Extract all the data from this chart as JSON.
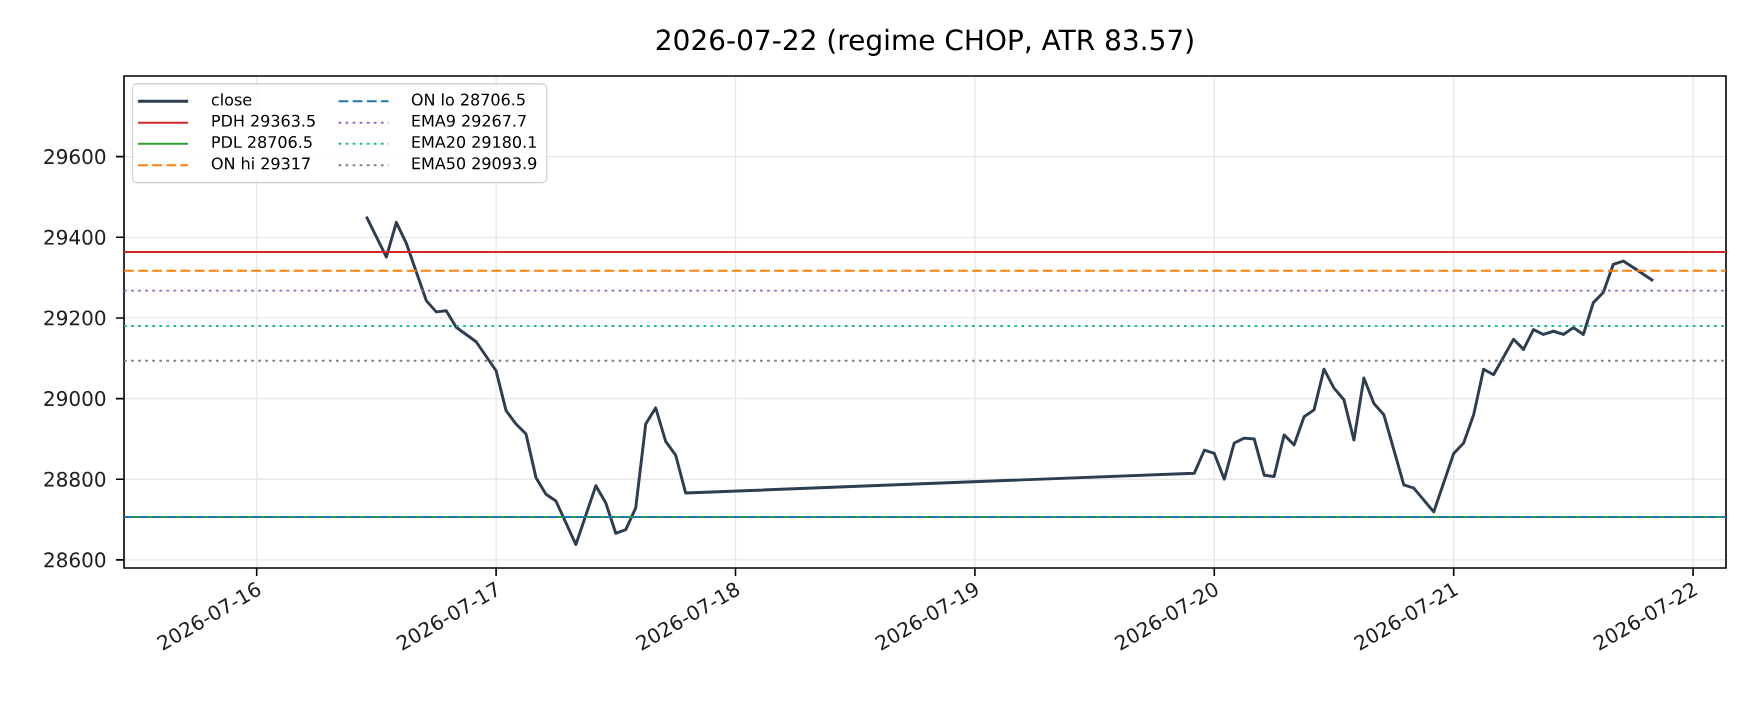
{
  "chart_data": {
    "type": "line",
    "title": "2026-07-22  (regime CHOP, ATR 83.57)",
    "series": [
      {
        "name": "close",
        "color": "#2c3e50",
        "x": [
          "2026-07-16T11:00",
          "2026-07-16T12:00",
          "2026-07-16T13:00",
          "2026-07-16T14:00",
          "2026-07-16T15:00",
          "2026-07-16T17:00",
          "2026-07-16T18:00",
          "2026-07-16T19:00",
          "2026-07-16T20:00",
          "2026-07-16T22:00",
          "2026-07-17T00:00",
          "2026-07-17T01:00",
          "2026-07-17T02:00",
          "2026-07-17T03:00",
          "2026-07-17T04:00",
          "2026-07-17T05:00",
          "2026-07-17T06:00",
          "2026-07-17T08:00",
          "2026-07-17T10:00",
          "2026-07-17T11:00",
          "2026-07-17T12:00",
          "2026-07-17T13:00",
          "2026-07-17T14:00",
          "2026-07-17T15:00",
          "2026-07-17T16:00",
          "2026-07-17T17:00",
          "2026-07-17T18:00",
          "2026-07-17T19:00",
          "2026-07-19T22:00",
          "2026-07-19T23:00",
          "2026-07-20T00:00",
          "2026-07-20T01:00",
          "2026-07-20T02:00",
          "2026-07-20T03:00",
          "2026-07-20T04:00",
          "2026-07-20T05:00",
          "2026-07-20T06:00",
          "2026-07-20T07:00",
          "2026-07-20T08:00",
          "2026-07-20T09:00",
          "2026-07-20T10:00",
          "2026-07-20T11:00",
          "2026-07-20T12:00",
          "2026-07-20T13:00",
          "2026-07-20T14:00",
          "2026-07-20T15:00",
          "2026-07-20T16:00",
          "2026-07-20T17:00",
          "2026-07-20T19:00",
          "2026-07-20T20:00",
          "2026-07-20T22:00",
          "2026-07-21T00:00",
          "2026-07-21T01:00",
          "2026-07-21T02:00",
          "2026-07-21T03:00",
          "2026-07-21T04:00",
          "2026-07-21T06:00",
          "2026-07-21T07:00",
          "2026-07-21T08:00",
          "2026-07-21T09:00",
          "2026-07-21T10:00",
          "2026-07-21T11:00",
          "2026-07-21T12:00",
          "2026-07-21T13:00",
          "2026-07-21T14:00",
          "2026-07-21T15:00",
          "2026-07-21T16:00",
          "2026-07-21T17:00",
          "2026-07-21T18:00",
          "2026-07-21T20:00"
        ],
        "values": [
          29451,
          29401,
          29351,
          29437,
          29385,
          29243,
          29215,
          29218,
          29177,
          29141,
          29069,
          28970,
          28937,
          28912,
          28804,
          28763,
          28746,
          28638,
          28784,
          28741,
          28666,
          28675,
          28729,
          28937,
          28977,
          28894,
          28860,
          28766,
          28815,
          28872,
          28864,
          28800,
          28890,
          28902,
          28900,
          28810,
          28807,
          28910,
          28885,
          28955,
          28972,
          29073,
          29026,
          28997,
          28897,
          29051,
          28988,
          28960,
          28786,
          28778,
          28719,
          28864,
          28890,
          28960,
          29073,
          29059,
          29147,
          29122,
          29171,
          29159,
          29167,
          29159,
          29176,
          29159,
          29238,
          29263,
          29333,
          29341,
          29325,
          29292
        ]
      }
    ],
    "ref_lines": [
      {
        "axis": "y",
        "value": 29363.5,
        "label": "PDH 29363.5",
        "color": "#d62728",
        "line_style": "solid"
      },
      {
        "axis": "y",
        "value": 28706.5,
        "label": "PDL 28706.5",
        "color": "#2ca02c",
        "line_style": "solid"
      },
      {
        "axis": "y",
        "value": 29317,
        "label": "ON hi 29317",
        "color": "#ff7f0e",
        "line_style": "dashed"
      },
      {
        "axis": "y",
        "value": 28706.5,
        "label": "ON lo 28706.5",
        "color": "#1f77b4",
        "line_style": "dashed"
      },
      {
        "axis": "y",
        "value": 29267.7,
        "label": "EMA9 29267.7",
        "color": "#9467bd",
        "line_style": "dotted"
      },
      {
        "axis": "y",
        "value": 29180.1,
        "label": "EMA20 29180.1",
        "color": "#17b890",
        "line_style": "dotted"
      },
      {
        "axis": "y",
        "value": 29093.9,
        "label": "EMA50 29093.9",
        "color": "#7f7f7f",
        "line_style": "dotted"
      }
    ],
    "xlim": [
      "2026-07-15T10:42",
      "2026-07-22T03:18"
    ],
    "xticks": [
      "2026-07-16",
      "2026-07-17",
      "2026-07-18",
      "2026-07-19",
      "2026-07-20",
      "2026-07-21",
      "2026-07-22"
    ],
    "ylim": [
      28580,
      29800
    ],
    "yticks": [
      28600,
      28800,
      29000,
      29200,
      29400,
      29600
    ],
    "grid": true,
    "legend": "top left",
    "marker": "none",
    "line_style": "solid"
  }
}
